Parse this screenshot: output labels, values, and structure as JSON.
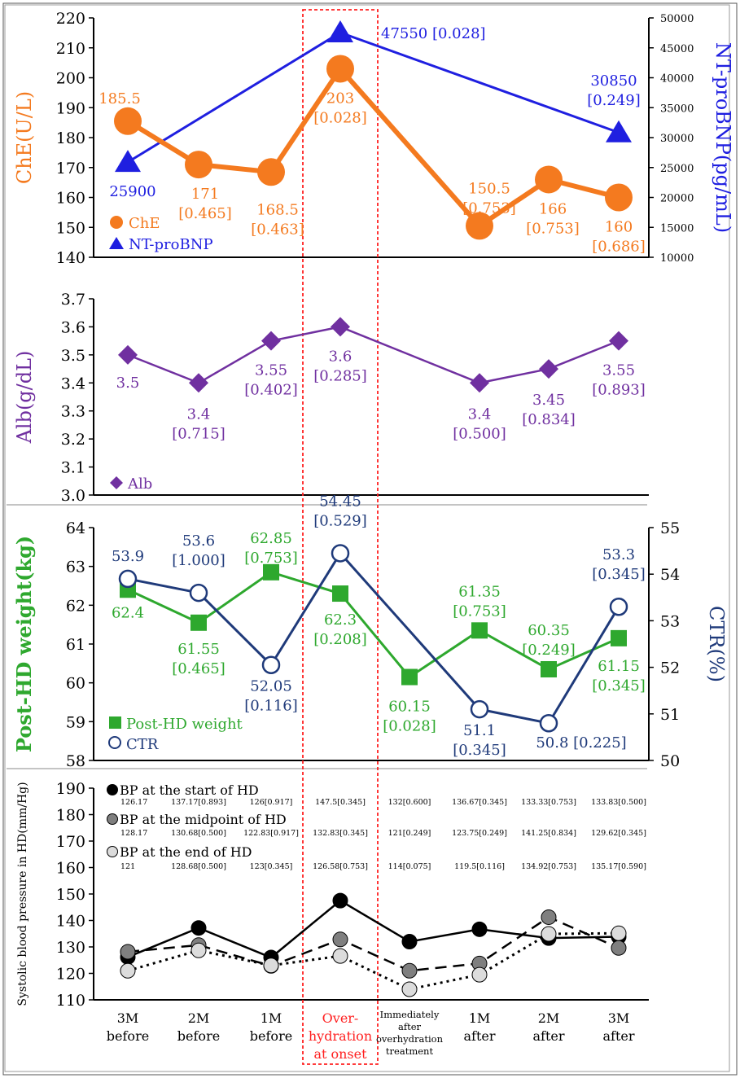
{
  "colors": {
    "che": "#f47a1f",
    "bnp": "#1f1fe0",
    "alb": "#7030a0",
    "weight": "#2ea82e",
    "ctr": "#1f3a7a",
    "highlight": "#ff2020",
    "axis": "#000000"
  },
  "timepoints": [
    {
      "key": "3m-before",
      "lines": [
        "3M",
        "before"
      ]
    },
    {
      "key": "2m-before",
      "lines": [
        "2M",
        "before"
      ]
    },
    {
      "key": "1m-before",
      "lines": [
        "1M",
        "before"
      ]
    },
    {
      "key": "onset",
      "lines": [
        "Over-",
        "hydration",
        "at onset"
      ]
    },
    {
      "key": "after-treatment",
      "lines": [
        "Immediately",
        "after",
        "overhydration",
        "treatment"
      ]
    },
    {
      "key": "1m-after",
      "lines": [
        "1M",
        "after"
      ]
    },
    {
      "key": "2m-after",
      "lines": [
        "2M",
        "after"
      ]
    },
    {
      "key": "3m-after",
      "lines": [
        "3M",
        "after"
      ]
    }
  ],
  "chart_data": [
    {
      "type": "line",
      "panel": "che-bnp",
      "ylabel": "ChE(U/L)",
      "ylabel_right": "NT-proBNP(pg/mL)",
      "ylim": [
        140,
        220
      ],
      "yticks": [
        140,
        150,
        160,
        170,
        180,
        190,
        200,
        210,
        220
      ],
      "ylim_right": [
        10000,
        50000
      ],
      "yticks_right": [
        10000,
        15000,
        20000,
        25000,
        30000,
        35000,
        40000,
        45000,
        50000
      ],
      "legend_position": "bottom-left",
      "series": [
        {
          "name": "ChE",
          "axis": "left",
          "marker": "circle",
          "x": [
            0,
            1,
            2,
            3,
            5,
            6,
            7
          ],
          "values": [
            185.5,
            171,
            168.5,
            203,
            150.5,
            166,
            160
          ],
          "labels": [
            [
              "185.5"
            ],
            [
              "171",
              "[0.465]"
            ],
            [
              "168.5",
              "[0.463]"
            ],
            [
              "203",
              "[0.028]"
            ],
            [
              "150.5",
              "[0.753]"
            ],
            [
              "166",
              "[0.753]"
            ],
            [
              "160",
              "[0.686]"
            ]
          ]
        },
        {
          "name": "NT-proBNP",
          "axis": "right",
          "marker": "triangle",
          "x": [
            0,
            3,
            7
          ],
          "values": [
            25900,
            47550,
            30850
          ],
          "labels": [
            [
              "25900"
            ],
            [
              "47550 [0.028]"
            ],
            [
              "30850",
              "[0.249]"
            ]
          ]
        }
      ]
    },
    {
      "type": "line",
      "panel": "alb",
      "ylabel": "Alb(g/dL)",
      "ylim": [
        3.0,
        3.7
      ],
      "yticks": [
        "3.0",
        "3.1",
        "3.2",
        "3.3",
        "3.4",
        "3.5",
        "3.6",
        "3.7"
      ],
      "legend_position": "bottom-left",
      "series": [
        {
          "name": "Alb",
          "marker": "diamond",
          "x": [
            0,
            1,
            2,
            3,
            5,
            6,
            7
          ],
          "values": [
            3.5,
            3.4,
            3.55,
            3.6,
            3.4,
            3.45,
            3.55
          ],
          "labels": [
            [
              "3.5"
            ],
            [
              "3.4",
              "[0.715]"
            ],
            [
              "3.55",
              "[0.402]"
            ],
            [
              "3.6",
              "[0.285]"
            ],
            [
              "3.4",
              "[0.500]"
            ],
            [
              "3.45",
              "[0.834]"
            ],
            [
              "3.55",
              "[0.893]"
            ]
          ]
        }
      ]
    },
    {
      "type": "line",
      "panel": "weight-ctr",
      "ylabel": "Post-HD weight(kg)",
      "ylabel_right": "CTR(%)",
      "ylim": [
        58,
        64
      ],
      "yticks": [
        58,
        59,
        60,
        61,
        62,
        63,
        64
      ],
      "ylim_right": [
        50,
        55
      ],
      "yticks_right": [
        50,
        51,
        52,
        53,
        54,
        55
      ],
      "legend_position": "bottom-left",
      "series": [
        {
          "name": "Post-HD weight",
          "axis": "left",
          "marker": "square",
          "x": [
            0,
            1,
            2,
            3,
            4,
            5,
            6,
            7
          ],
          "values": [
            62.4,
            61.55,
            62.85,
            62.3,
            60.15,
            61.35,
            60.35,
            61.15
          ],
          "labels": [
            [
              "62.4"
            ],
            [
              "61.55",
              "[0.465]"
            ],
            [
              "62.85",
              "[0.753]"
            ],
            [
              "62.3",
              "[0.208]"
            ],
            [
              "60.15",
              "[0.028]"
            ],
            [
              "61.35",
              "[0.753]"
            ],
            [
              "60.35",
              "[0.249]"
            ],
            [
              "61.15",
              "[0.345]"
            ]
          ]
        },
        {
          "name": "CTR",
          "axis": "right",
          "marker": "open-circle",
          "x": [
            0,
            1,
            2,
            3,
            5,
            6,
            7
          ],
          "values": [
            53.9,
            53.6,
            52.05,
            54.45,
            51.1,
            50.8,
            53.3
          ],
          "labels": [
            [
              "53.9"
            ],
            [
              "53.6",
              "[1.000]"
            ],
            [
              "52.05",
              "[0.116]"
            ],
            [
              "54.45",
              "[0.529]"
            ],
            [
              "51.1",
              "[0.345]"
            ],
            [
              "50.8 [0.225]"
            ],
            [
              "53.3",
              "[0.345]"
            ]
          ]
        }
      ]
    },
    {
      "type": "line",
      "panel": "bp",
      "ylabel": "Systolic blood pressure in HD(mm/Hg)",
      "ylim": [
        110,
        190
      ],
      "yticks": [
        110,
        120,
        130,
        140,
        150,
        160,
        170,
        180,
        190
      ],
      "legend_position": "top-left",
      "series": [
        {
          "name": "BP at the start of HD",
          "marker": "filled-circle",
          "line": "solid",
          "x": [
            0,
            1,
            2,
            3,
            4,
            5,
            6,
            7
          ],
          "values": [
            126.17,
            137.17,
            126,
            147.5,
            132,
            136.67,
            133.33,
            133.83
          ],
          "labels": [
            "126.17",
            "137.17[0.893]",
            "126[0.917]",
            "147.5[0.345]",
            "132[0.600]",
            "136.67[0.345]",
            "133.33[0.753]",
            "133.83[0.500]"
          ]
        },
        {
          "name": "BP at the midpoint of HD",
          "marker": "gray-circle",
          "line": "dashed",
          "x": [
            0,
            1,
            2,
            3,
            4,
            5,
            6,
            7
          ],
          "values": [
            128.17,
            130.68,
            122.83,
            132.83,
            121,
            123.75,
            141.25,
            129.62
          ],
          "labels": [
            "128.17",
            "130.68[0.500]",
            "122.83[0.917]",
            "132.83[0.345]",
            "121[0.249]",
            "123.75[0.249]",
            "141.25[0.834]",
            "129.62[0.345]"
          ]
        },
        {
          "name": "BP at the end of HD",
          "marker": "light-circle",
          "line": "dotted",
          "x": [
            0,
            1,
            2,
            3,
            4,
            5,
            6,
            7
          ],
          "values": [
            121,
            128.68,
            123,
            126.58,
            114,
            119.5,
            134.92,
            135.17
          ],
          "labels": [
            "121",
            "128.68[0.500]",
            "123[0.345]",
            "126.58[0.753]",
            "114[0.075]",
            "119.5[0.116]",
            "134.92[0.753]",
            "135.17[0.590]"
          ]
        }
      ]
    }
  ]
}
